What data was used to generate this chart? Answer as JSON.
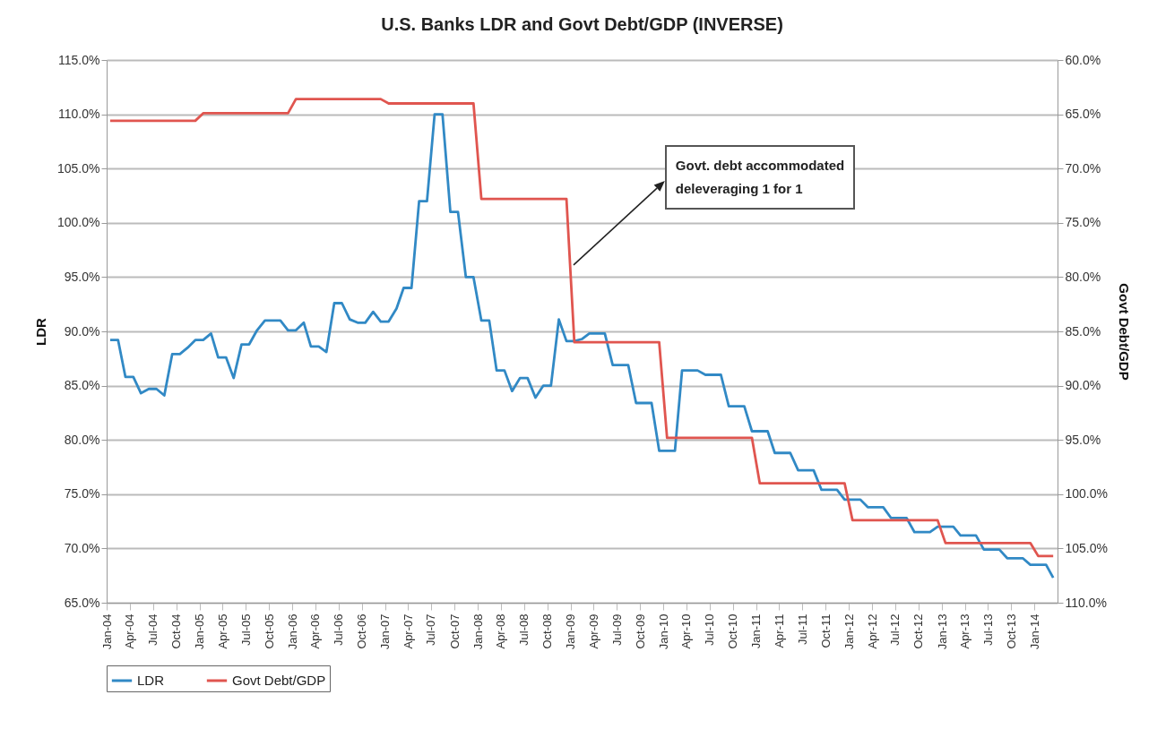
{
  "chart_data": {
    "type": "line",
    "title": "U.S. Banks LDR and Govt Debt/GDP (INVERSE)",
    "ylabel": "LDR",
    "y2label": "Govt Debt/GDP",
    "annotations": [
      "Govt. debt accommodated\ndeleveraging 1 for 1"
    ],
    "x": [
      "2004-01-15",
      "2004-02-15",
      "2004-03-15",
      "2004-04-15",
      "2004-05-15",
      "2004-06-15",
      "2004-07-15",
      "2004-08-15",
      "2004-09-15",
      "2004-10-15",
      "2004-11-15",
      "2004-12-15",
      "2005-01-15",
      "2005-02-15",
      "2005-03-15",
      "2005-04-15",
      "2005-05-15",
      "2005-06-15",
      "2005-07-15",
      "2005-08-15",
      "2005-09-15",
      "2005-10-15",
      "2005-11-15",
      "2005-12-15",
      "2006-01-15",
      "2006-02-15",
      "2006-03-15",
      "2006-04-15",
      "2006-05-15",
      "2006-06-15",
      "2006-07-15",
      "2006-08-15",
      "2006-09-15",
      "2006-10-15",
      "2006-11-15",
      "2006-12-15",
      "2007-01-15",
      "2007-02-15",
      "2007-03-15",
      "2007-04-15",
      "2007-05-15",
      "2007-06-15",
      "2007-07-15",
      "2007-08-15",
      "2007-09-15",
      "2007-10-15",
      "2007-11-15",
      "2007-12-15",
      "2008-01-15",
      "2008-02-15",
      "2008-03-15",
      "2008-04-15",
      "2008-05-15",
      "2008-06-15",
      "2008-07-15",
      "2008-08-15",
      "2008-09-15",
      "2008-10-15",
      "2008-11-15",
      "2008-12-15",
      "2009-01-15",
      "2009-02-15",
      "2009-03-15",
      "2009-04-15",
      "2009-05-15",
      "2009-06-15",
      "2009-07-15",
      "2009-08-15",
      "2009-09-15",
      "2009-10-15",
      "2009-11-15",
      "2009-12-15",
      "2010-01-15",
      "2010-02-15",
      "2010-03-15",
      "2010-04-15",
      "2010-05-15",
      "2010-06-15",
      "2010-07-15",
      "2010-08-15",
      "2010-09-15",
      "2010-10-15",
      "2010-11-15",
      "2010-12-15",
      "2011-01-15",
      "2011-02-15",
      "2011-03-15",
      "2011-04-15",
      "2011-05-15",
      "2011-06-15",
      "2011-07-15",
      "2011-08-15",
      "2011-09-15",
      "2011-10-15",
      "2011-11-15",
      "2011-12-15",
      "2012-01-15",
      "2012-02-15",
      "2012-03-15",
      "2012-04-15",
      "2012-05-15",
      "2012-06-15",
      "2012-07-15",
      "2012-08-15",
      "2012-09-15",
      "2012-10-15",
      "2012-11-15",
      "2012-12-15",
      "2013-01-15",
      "2013-02-15",
      "2013-03-15",
      "2013-04-15",
      "2013-05-15",
      "2013-06-15",
      "2013-07-15",
      "2013-08-15",
      "2013-09-15",
      "2013-10-15",
      "2013-11-15",
      "2013-12-15",
      "2014-01-15",
      "2014-02-15",
      "2014-03-15"
    ],
    "series": [
      {
        "name": "LDR",
        "color": "#3189c5",
        "values": [
          89.2,
          89.2,
          85.8,
          85.8,
          84.3,
          84.7,
          84.7,
          84.1,
          87.9,
          87.9,
          88.5,
          89.2,
          89.2,
          89.8,
          87.6,
          87.6,
          85.7,
          88.8,
          88.8,
          90.1,
          91.0,
          91.0,
          91.0,
          90.1,
          90.1,
          90.8,
          88.6,
          88.6,
          88.1,
          92.6,
          92.6,
          91.1,
          90.8,
          90.8,
          91.8,
          90.9,
          90.9,
          92.1,
          94.0,
          94.0,
          102.0,
          102.0,
          110.0,
          110.0,
          101.0,
          101.0,
          95.0,
          95.0,
          91.0,
          91.0,
          86.4,
          86.4,
          84.5,
          85.7,
          85.7,
          83.9,
          85.0,
          85.0,
          91.1,
          89.1,
          89.1,
          89.3,
          89.8,
          89.8,
          89.8,
          86.9,
          86.9,
          86.9,
          83.4,
          83.4,
          83.4,
          79.0,
          79.0,
          79.0,
          86.4,
          86.4,
          86.4,
          86.0,
          86.0,
          86.0,
          83.1,
          83.1,
          83.1,
          80.8,
          80.8,
          80.8,
          78.8,
          78.8,
          78.8,
          77.2,
          77.2,
          77.2,
          75.4,
          75.4,
          75.4,
          74.5,
          74.5,
          74.5,
          73.8,
          73.8,
          73.8,
          72.8,
          72.8,
          72.8,
          71.5,
          71.5,
          71.5,
          72.0,
          72.0,
          72.0,
          71.2,
          71.2,
          71.2,
          69.9,
          69.9,
          69.9,
          69.1,
          69.1,
          69.1,
          68.5,
          68.5,
          68.5,
          67.3
        ]
      },
      {
        "name": "Govt Debt/GDP",
        "color": "#e0554f",
        "axis": "y2",
        "values": [
          65.6,
          65.6,
          65.6,
          65.6,
          65.6,
          65.6,
          65.6,
          65.6,
          65.6,
          65.6,
          65.6,
          65.6,
          64.9,
          64.9,
          64.9,
          64.9,
          64.9,
          64.9,
          64.9,
          64.9,
          64.9,
          64.9,
          64.9,
          64.9,
          63.6,
          63.6,
          63.6,
          63.6,
          63.6,
          63.6,
          63.6,
          63.6,
          63.6,
          63.6,
          63.6,
          63.6,
          64.0,
          64.0,
          64.0,
          64.0,
          64.0,
          64.0,
          64.0,
          64.0,
          64.0,
          64.0,
          64.0,
          64.0,
          72.8,
          72.8,
          72.8,
          72.8,
          72.8,
          72.8,
          72.8,
          72.8,
          72.8,
          72.8,
          72.8,
          72.8,
          86.0,
          86.0,
          86.0,
          86.0,
          86.0,
          86.0,
          86.0,
          86.0,
          86.0,
          86.0,
          86.0,
          86.0,
          94.8,
          94.8,
          94.8,
          94.8,
          94.8,
          94.8,
          94.8,
          94.8,
          94.8,
          94.8,
          94.8,
          94.8,
          99.0,
          99.0,
          99.0,
          99.0,
          99.0,
          99.0,
          99.0,
          99.0,
          99.0,
          99.0,
          99.0,
          99.0,
          102.4,
          102.4,
          102.4,
          102.4,
          102.4,
          102.4,
          102.4,
          102.4,
          102.4,
          102.4,
          102.4,
          102.4,
          104.5,
          104.5,
          104.5,
          104.5,
          104.5,
          104.5,
          104.5,
          104.5,
          104.5,
          104.5,
          104.5,
          104.5,
          105.7,
          105.7,
          105.7
        ]
      }
    ],
    "xlim": [
      "2004-01",
      "2014-04"
    ],
    "xticks": [
      {
        "value": "2004-01",
        "label": "Jan-04"
      },
      {
        "value": "2004-04",
        "label": "Apr-04"
      },
      {
        "value": "2004-07",
        "label": "Jul-04"
      },
      {
        "value": "2004-10",
        "label": "Oct-04"
      },
      {
        "value": "2005-01",
        "label": "Jan-05"
      },
      {
        "value": "2005-04",
        "label": "Apr-05"
      },
      {
        "value": "2005-07",
        "label": "Jul-05"
      },
      {
        "value": "2005-10",
        "label": "Oct-05"
      },
      {
        "value": "2006-01",
        "label": "Jan-06"
      },
      {
        "value": "2006-04",
        "label": "Apr-06"
      },
      {
        "value": "2006-07",
        "label": "Jul-06"
      },
      {
        "value": "2006-10",
        "label": "Oct-06"
      },
      {
        "value": "2007-01",
        "label": "Jan-07"
      },
      {
        "value": "2007-04",
        "label": "Apr-07"
      },
      {
        "value": "2007-07",
        "label": "Jul-07"
      },
      {
        "value": "2007-10",
        "label": "Oct-07"
      },
      {
        "value": "2008-01",
        "label": "Jan-08"
      },
      {
        "value": "2008-04",
        "label": "Apr-08"
      },
      {
        "value": "2008-07",
        "label": "Jul-08"
      },
      {
        "value": "2008-10",
        "label": "Oct-08"
      },
      {
        "value": "2009-01",
        "label": "Jan-09"
      },
      {
        "value": "2009-04",
        "label": "Apr-09"
      },
      {
        "value": "2009-07",
        "label": "Jul-09"
      },
      {
        "value": "2009-10",
        "label": "Oct-09"
      },
      {
        "value": "2010-01",
        "label": "Jan-10"
      },
      {
        "value": "2010-04",
        "label": "Apr-10"
      },
      {
        "value": "2010-07",
        "label": "Jul-10"
      },
      {
        "value": "2010-10",
        "label": "Oct-10"
      },
      {
        "value": "2011-01",
        "label": "Jan-11"
      },
      {
        "value": "2011-04",
        "label": "Apr-11"
      },
      {
        "value": "2011-07",
        "label": "Jul-11"
      },
      {
        "value": "2011-10",
        "label": "Oct-11"
      },
      {
        "value": "2012-01",
        "label": "Jan-12"
      },
      {
        "value": "2012-04",
        "label": "Apr-12"
      },
      {
        "value": "2012-07",
        "label": "Jul-12"
      },
      {
        "value": "2012-10",
        "label": "Oct-12"
      },
      {
        "value": "2013-01",
        "label": "Jan-13"
      },
      {
        "value": "2013-04",
        "label": "Apr-13"
      },
      {
        "value": "2013-07",
        "label": "Jul-13"
      },
      {
        "value": "2013-10",
        "label": "Oct-13"
      },
      {
        "value": "2014-01",
        "label": "Jan-14"
      }
    ],
    "ylim": [
      65,
      115
    ],
    "yticks": [
      {
        "value": 65,
        "label": "65.0%"
      },
      {
        "value": 70,
        "label": "70.0%"
      },
      {
        "value": 75,
        "label": "75.0%"
      },
      {
        "value": 80,
        "label": "80.0%"
      },
      {
        "value": 85,
        "label": "85.0%"
      },
      {
        "value": 90,
        "label": "90.0%"
      },
      {
        "value": 95,
        "label": "95.0%"
      },
      {
        "value": 100,
        "label": "100.0%"
      },
      {
        "value": 105,
        "label": "105.0%"
      },
      {
        "value": 110,
        "label": "110.0%"
      },
      {
        "value": 115,
        "label": "115.0%"
      }
    ],
    "y2lim": [
      110,
      60
    ],
    "y2ticks": [
      {
        "value": 60,
        "label": "60.0%"
      },
      {
        "value": 65,
        "label": "65.0%"
      },
      {
        "value": 70,
        "label": "70.0%"
      },
      {
        "value": 75,
        "label": "75.0%"
      },
      {
        "value": 80,
        "label": "80.0%"
      },
      {
        "value": 85,
        "label": "85.0%"
      },
      {
        "value": 90,
        "label": "90.0%"
      },
      {
        "value": 95,
        "label": "95.0%"
      },
      {
        "value": 100,
        "label": "100.0%"
      },
      {
        "value": 105,
        "label": "105.0%"
      },
      {
        "value": 110,
        "label": "110.0%"
      }
    ],
    "grid": "y",
    "legend": "bottom"
  }
}
